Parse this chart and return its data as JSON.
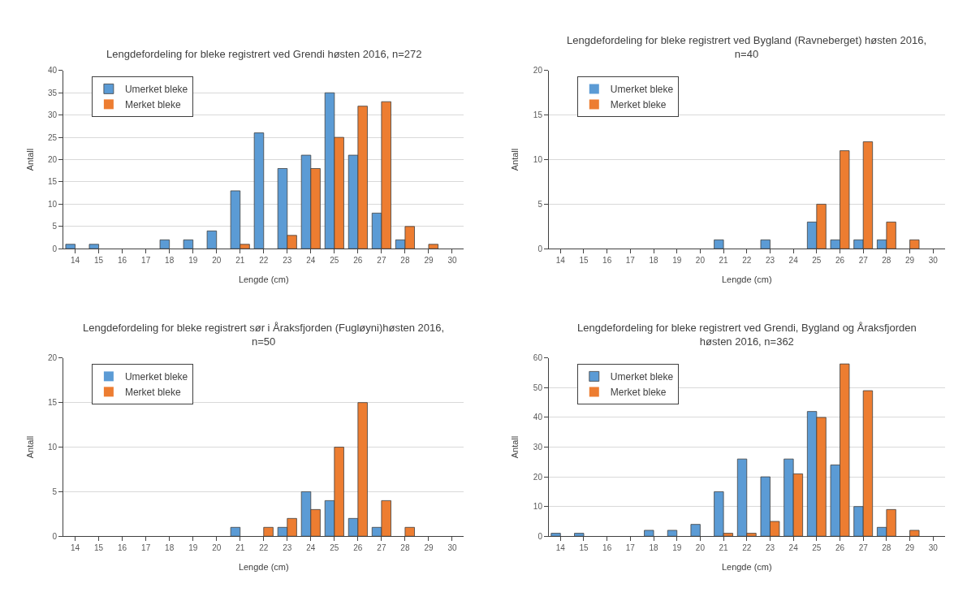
{
  "chart_data": [
    {
      "type": "bar",
      "title": "Lengdefordeling for bleke registrert ved Grendi høsten 2016, n=272",
      "xlabel": "Lengde (cm)",
      "ylabel": "Antall",
      "categories": [
        "14",
        "15",
        "16",
        "17",
        "18",
        "19",
        "20",
        "21",
        "22",
        "23",
        "24",
        "25",
        "26",
        "27",
        "28",
        "29",
        "30"
      ],
      "ylim": [
        0,
        40
      ],
      "yticks": [
        0,
        5,
        10,
        15,
        20,
        25,
        30,
        35,
        40
      ],
      "grid": "y",
      "legend": "top left",
      "series": [
        {
          "name": "Umerket bleke",
          "color": "#5b9bd5",
          "values": [
            1,
            1,
            0,
            0,
            2,
            2,
            4,
            13,
            26,
            18,
            21,
            35,
            21,
            8,
            2,
            0,
            0
          ]
        },
        {
          "name": "Merket bleke",
          "color": "#ed7d31",
          "values": [
            0,
            0,
            0,
            0,
            0,
            0,
            0,
            1,
            0,
            3,
            18,
            25,
            32,
            33,
            5,
            1,
            0
          ]
        }
      ]
    },
    {
      "type": "bar",
      "title": "Lengdefordeling for bleke registrert ved Bygland (Ravneberget) høsten 2016,\nn=40",
      "xlabel": "Lengde (cm)",
      "ylabel": "Antall",
      "categories": [
        "14",
        "15",
        "16",
        "17",
        "18",
        "19",
        "20",
        "21",
        "22",
        "23",
        "24",
        "25",
        "26",
        "27",
        "28",
        "29",
        "30"
      ],
      "ylim": [
        0,
        20
      ],
      "yticks": [
        0,
        5,
        10,
        15,
        20
      ],
      "grid": "y",
      "legend": "top left",
      "series": [
        {
          "name": "Umerket bleke",
          "color": "#5b9bd5",
          "values": [
            0,
            0,
            0,
            0,
            0,
            0,
            0,
            1,
            0,
            1,
            0,
            3,
            1,
            1,
            1,
            0,
            0
          ]
        },
        {
          "name": "Merket bleke",
          "color": "#ed7d31",
          "values": [
            0,
            0,
            0,
            0,
            0,
            0,
            0,
            0,
            0,
            0,
            0,
            5,
            11,
            12,
            3,
            1,
            0
          ]
        }
      ]
    },
    {
      "type": "bar",
      "title": "Lengdefordeling for bleke registrert sør i Åraksfjorden (Fugløyni)høsten 2016,\nn=50",
      "xlabel": "Lengde (cm)",
      "ylabel": "Antall",
      "categories": [
        "14",
        "15",
        "16",
        "17",
        "18",
        "19",
        "20",
        "21",
        "22",
        "23",
        "24",
        "25",
        "26",
        "27",
        "28",
        "29",
        "30"
      ],
      "ylim": [
        0,
        20
      ],
      "yticks": [
        0,
        5,
        10,
        15,
        20
      ],
      "grid": "y",
      "legend": "top left",
      "series": [
        {
          "name": "Umerket bleke",
          "color": "#5b9bd5",
          "values": [
            0,
            0,
            0,
            0,
            0,
            0,
            0,
            1,
            0,
            1,
            5,
            4,
            2,
            1,
            0,
            0,
            0
          ]
        },
        {
          "name": "Merket bleke",
          "color": "#ed7d31",
          "values": [
            0,
            0,
            0,
            0,
            0,
            0,
            0,
            0,
            1,
            2,
            3,
            10,
            15,
            4,
            1,
            0,
            0
          ]
        }
      ]
    },
    {
      "type": "bar",
      "title": "Lengdefordeling for bleke registrert ved Grendi, Bygland og Åraksfjorden\nhøsten 2016, n=362",
      "xlabel": "Lengde (cm)",
      "ylabel": "Antall",
      "categories": [
        "14",
        "15",
        "16",
        "17",
        "18",
        "19",
        "20",
        "21",
        "22",
        "23",
        "24",
        "25",
        "26",
        "27",
        "28",
        "29",
        "30"
      ],
      "ylim": [
        0,
        60
      ],
      "yticks": [
        0,
        10,
        20,
        30,
        40,
        50,
        60
      ],
      "grid": "y",
      "legend": "top left",
      "series": [
        {
          "name": "Umerket bleke",
          "color": "#5b9bd5",
          "values": [
            1,
            1,
            0,
            0,
            2,
            2,
            4,
            15,
            26,
            20,
            26,
            42,
            24,
            10,
            3,
            0,
            0
          ]
        },
        {
          "name": "Merket bleke",
          "color": "#ed7d31",
          "values": [
            0,
            0,
            0,
            0,
            0,
            0,
            0,
            1,
            1,
            5,
            21,
            40,
            58,
            49,
            9,
            2,
            0
          ]
        }
      ]
    }
  ]
}
